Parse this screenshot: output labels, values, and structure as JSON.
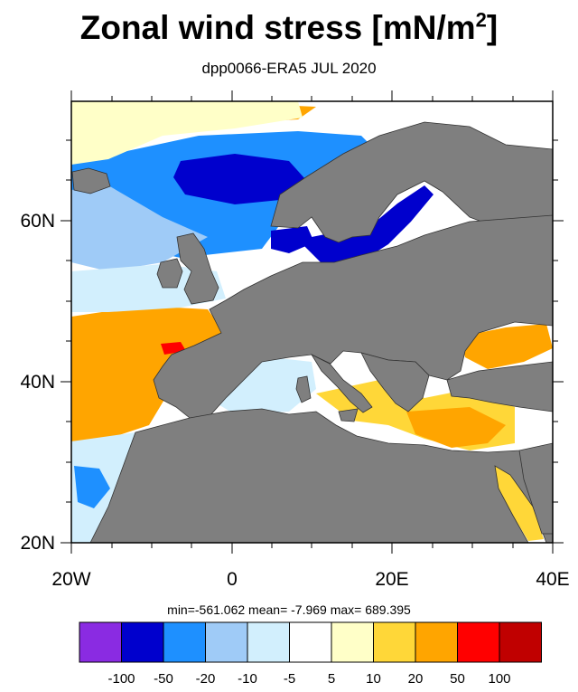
{
  "title": {
    "main": "Zonal wind stress [mN/m",
    "sup": "2",
    "close": "]"
  },
  "subtitle": "dpp0066-ERA5  JUL 2020",
  "stats": "min=-561.062  mean=  -7.969  max= 689.395",
  "map": {
    "lon_range": [
      -20,
      40
    ],
    "lat_range": [
      20,
      75
    ],
    "y_axis_labels": [
      "60N",
      "40N",
      "20N"
    ],
    "x_axis_labels": [
      "20W",
      "0",
      "20E",
      "40E"
    ],
    "land_color": "#7f7f7f",
    "coast_color": "#333333"
  },
  "colorbar": {
    "colors": [
      "#8a2be2",
      "#0000cd",
      "#1e90ff",
      "#9fcbf7",
      "#d2effd",
      "#ffffff",
      "#ffffc8",
      "#ffd738",
      "#ffa500",
      "#ff0000",
      "#c00000"
    ],
    "labels": [
      "-100",
      "-50",
      "-20",
      "-10",
      "-5",
      "5",
      "10",
      "20",
      "50",
      "100"
    ]
  }
}
